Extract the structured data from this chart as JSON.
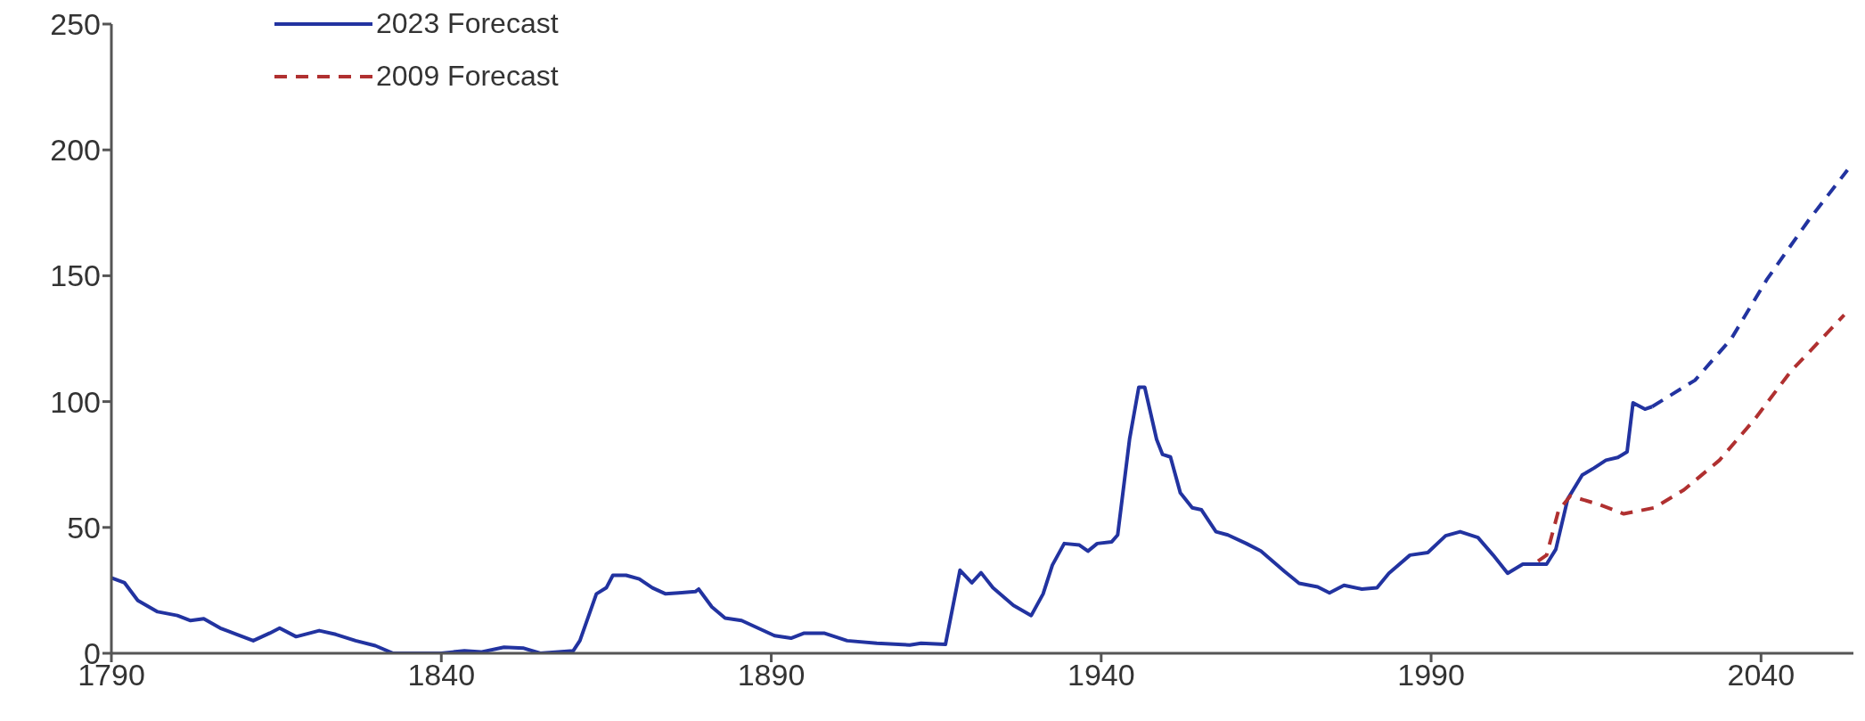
{
  "chart_data": {
    "type": "line",
    "xlim": [
      1790,
      2054
    ],
    "xticks": [
      1790,
      1840,
      1890,
      1940,
      1990,
      2040
    ],
    "ylim": [
      0,
      250
    ],
    "yticks": [
      0,
      50,
      100,
      150,
      200,
      250
    ],
    "grid": false,
    "legend": "top left",
    "marker": "none",
    "series": [
      {
        "name": "2023 Forecast",
        "color": "#2233a0",
        "line_style": "solid",
        "x": [
          1790,
          1792,
          1794,
          1797,
          1800,
          1802,
          1804,
          1806.5,
          1809,
          1811.5,
          1814,
          1815.5,
          1818,
          1821.5,
          1824,
          1827,
          1830,
          1832.7,
          1836,
          1840,
          1843.5,
          1846,
          1849.5,
          1852.5,
          1855,
          1860,
          1861,
          1863.5,
          1865,
          1866,
          1868,
          1870,
          1872,
          1874,
          1876,
          1878.5,
          1879,
          1881,
          1883,
          1885.5,
          1888,
          1890.5,
          1893,
          1895,
          1898,
          1901.5,
          1906,
          1911,
          1912.7,
          1916.4,
          1918.6,
          1920.4,
          1921.8,
          1923.6,
          1926.7,
          1929.4,
          1931.2,
          1932.6,
          1934.4,
          1936.7,
          1938,
          1939.4,
          1941.6,
          1942.5,
          1944.3,
          1945.7,
          1946.6,
          1948.4,
          1949.3,
          1950.5,
          1952,
          1953.8,
          1955.2,
          1957.4,
          1959.2,
          1962,
          1964.2,
          1967.8,
          1970,
          1972.8,
          1974.6,
          1976.8,
          1979.5,
          1981.8,
          1983.6,
          1986.8,
          1989.5,
          1992.2,
          1994.4,
          1997.1,
          1999.4,
          2001.6,
          2003.9,
          2007.5,
          2008.9,
          2010.7,
          2012.9,
          2014.7,
          2016.5,
          2018.3,
          2019.7,
          2020.6,
          2022.4,
          2023.5
        ],
        "values": [
          30,
          28,
          21,
          16.5,
          15,
          13,
          13.7,
          10,
          7.5,
          5,
          8,
          10,
          6.6,
          9,
          7.5,
          5,
          3,
          0,
          0,
          0,
          1,
          0.5,
          2.4,
          2,
          0,
          1,
          5,
          23.6,
          26,
          31,
          31,
          29.5,
          26,
          23.6,
          24,
          24.5,
          25.5,
          18.4,
          14,
          13,
          10,
          7,
          6,
          8,
          8,
          5,
          4,
          3.3,
          4,
          3.5,
          33,
          28,
          32,
          26,
          19,
          15,
          23.6,
          35,
          43.6,
          43,
          40.6,
          43.6,
          44.3,
          47,
          85,
          105.7,
          105.7,
          85,
          79,
          78,
          63.7,
          57.8,
          57,
          48.3,
          47,
          43.6,
          40.6,
          32.5,
          27.8,
          26.4,
          24,
          27,
          25.5,
          26,
          31.8,
          39,
          40,
          46.7,
          48.3,
          46,
          39,
          31.8,
          35.4,
          35.4,
          41.3,
          61.3,
          70.8,
          73.6,
          76.7,
          77.8,
          80,
          99.5,
          97,
          98
        ]
      },
      {
        "color": "#2233a0",
        "line_style": "dashed",
        "x": [
          2023.5,
          2030,
          2035.5,
          2040.9,
          2047.2,
          2053.1
        ],
        "values": [
          98,
          108.5,
          125,
          148.6,
          172,
          192
        ]
      },
      {
        "name": "2009 Forecast",
        "color": "#b03030",
        "line_style": "dashed",
        "x": [
          2006.2,
          2007.5,
          2009.3,
          2011.1,
          2015.6,
          2019.2,
          2023.8,
          2028.3,
          2033.7,
          2039.1,
          2044.5,
          2052.6
        ],
        "values": [
          36.6,
          39,
          56.6,
          62.5,
          59,
          55.4,
          57.8,
          64.9,
          76.7,
          93.2,
          112,
          134.4
        ]
      }
    ]
  }
}
